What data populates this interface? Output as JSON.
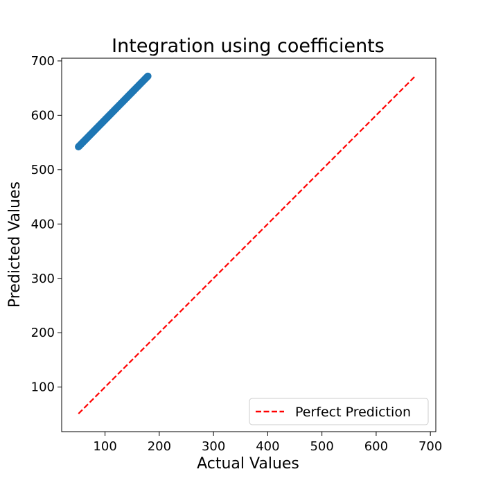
{
  "chart_data": {
    "type": "scatter",
    "title": "Integration using coefficients",
    "xlabel": "Actual Values",
    "ylabel": "Predicted Values",
    "xlim": [
      20,
      710
    ],
    "ylim": [
      18,
      705
    ],
    "xticks": [
      100,
      200,
      300,
      400,
      500,
      600,
      700
    ],
    "yticks": [
      100,
      200,
      300,
      400,
      500,
      600,
      700
    ],
    "grid": false,
    "legend": {
      "placement": "bottom-right",
      "entries": [
        "Perfect Prediction"
      ]
    },
    "series": [
      {
        "kind": "scatter",
        "color": "#1f77b4",
        "x_range": [
          51,
          179
        ],
        "y_range": [
          542,
          672
        ]
      },
      {
        "kind": "line",
        "name": "Perfect Prediction",
        "color": "#ff0000",
        "style": "dashed",
        "x": [
          51,
          672
        ],
        "y": [
          51,
          672
        ]
      }
    ]
  }
}
